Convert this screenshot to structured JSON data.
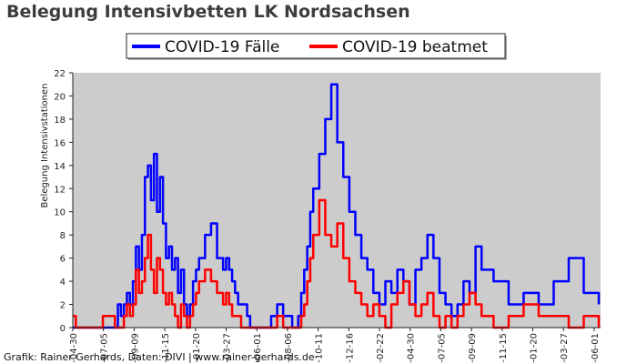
{
  "chart_data": {
    "type": "line",
    "title": "Belegung Intensivbetten LK Nordsachsen",
    "ylabel": "Belegung Intensivstationen",
    "xlabel": "",
    "ylim": [
      0,
      22
    ],
    "yticks": [
      0,
      2,
      4,
      6,
      8,
      10,
      12,
      14,
      16,
      18,
      20,
      22
    ],
    "x_tick_labels": [
      "-04-30",
      "-07-05",
      "-09-09",
      "-11-15",
      "-01-20",
      "-03-27",
      "-06-01",
      "-08-06",
      "-10-11",
      "-12-16",
      "-02-22",
      "-04-30",
      "-07-05",
      "-09-09",
      "-11-15",
      "-01-20",
      "-03-27",
      "-06-01"
    ],
    "grid": false,
    "legend_position": "top-center",
    "background": "#cccccc",
    "series": [
      {
        "name": "COVID-19 Fälle",
        "color": "#0000ff",
        "x": [
          0,
          1,
          2,
          3,
          10,
          14,
          15,
          16,
          17,
          18,
          19,
          20,
          21,
          22,
          23,
          24,
          25,
          26,
          27,
          28,
          29,
          30,
          31,
          32,
          33,
          34,
          35,
          36,
          37,
          38,
          39,
          40,
          41,
          42,
          44,
          46,
          48,
          50,
          51,
          52,
          53,
          54,
          55,
          56,
          57,
          58,
          59,
          60,
          62,
          63,
          64,
          65,
          66,
          68,
          70,
          73,
          75,
          76,
          77,
          78,
          79,
          80,
          82,
          84,
          86,
          88,
          90,
          92,
          94,
          96,
          98,
          100,
          102,
          104,
          106,
          108,
          110,
          112,
          114,
          116,
          118,
          120,
          122,
          124,
          126,
          128,
          130,
          132,
          134,
          136,
          140,
          145,
          150,
          155,
          160,
          165,
          170,
          175
        ],
        "y": [
          0,
          0,
          0,
          0,
          0,
          0,
          2,
          1,
          2,
          3,
          2,
          4,
          7,
          5,
          8,
          13,
          14,
          11,
          15,
          10,
          13,
          9,
          6,
          7,
          5,
          6,
          3,
          5,
          2,
          1,
          2,
          4,
          5,
          6,
          8,
          9,
          6,
          5,
          6,
          5,
          4,
          3,
          2,
          2,
          2,
          1,
          0,
          0,
          0,
          0,
          0,
          0,
          1,
          2,
          1,
          0,
          1,
          3,
          5,
          7,
          10,
          12,
          15,
          18,
          21,
          16,
          13,
          10,
          8,
          6,
          5,
          3,
          2,
          4,
          3,
          5,
          4,
          2,
          5,
          6,
          8,
          6,
          3,
          2,
          1,
          2,
          4,
          3,
          7,
          5,
          4,
          2,
          3,
          2,
          4,
          6,
          3,
          2
        ]
      },
      {
        "name": "COVID-19 beatmet",
        "color": "#ff0000",
        "x": [
          0,
          1,
          2,
          3,
          10,
          14,
          15,
          16,
          17,
          18,
          19,
          20,
          21,
          22,
          23,
          24,
          25,
          26,
          27,
          28,
          29,
          30,
          31,
          32,
          33,
          34,
          35,
          36,
          37,
          38,
          39,
          40,
          41,
          42,
          44,
          46,
          48,
          50,
          51,
          52,
          53,
          54,
          55,
          56,
          57,
          58,
          59,
          60,
          62,
          63,
          64,
          65,
          66,
          68,
          70,
          73,
          75,
          76,
          77,
          78,
          79,
          80,
          82,
          84,
          86,
          88,
          90,
          92,
          94,
          96,
          98,
          100,
          102,
          104,
          106,
          108,
          110,
          112,
          114,
          116,
          118,
          120,
          122,
          124,
          126,
          128,
          130,
          132,
          134,
          136,
          140,
          145,
          150,
          155,
          160,
          165,
          170,
          175
        ],
        "y": [
          1,
          0,
          0,
          0,
          1,
          0,
          0,
          0,
          1,
          2,
          1,
          2,
          5,
          3,
          4,
          6,
          8,
          5,
          3,
          6,
          5,
          3,
          2,
          3,
          2,
          1,
          0,
          2,
          1,
          0,
          1,
          2,
          3,
          4,
          5,
          4,
          3,
          2,
          3,
          2,
          1,
          1,
          1,
          0,
          0,
          0,
          0,
          0,
          0,
          0,
          0,
          0,
          0,
          1,
          0,
          0,
          0,
          1,
          2,
          4,
          6,
          8,
          11,
          8,
          7,
          9,
          6,
          4,
          3,
          2,
          1,
          2,
          1,
          0,
          2,
          3,
          4,
          2,
          1,
          2,
          3,
          1,
          0,
          1,
          0,
          1,
          2,
          3,
          2,
          1,
          0,
          1,
          2,
          1,
          1,
          0,
          1,
          0
        ]
      }
    ]
  },
  "credit": "Grafik: Rainer Gerhards, Daten: DIVI | www.rainer-gerhards.de"
}
